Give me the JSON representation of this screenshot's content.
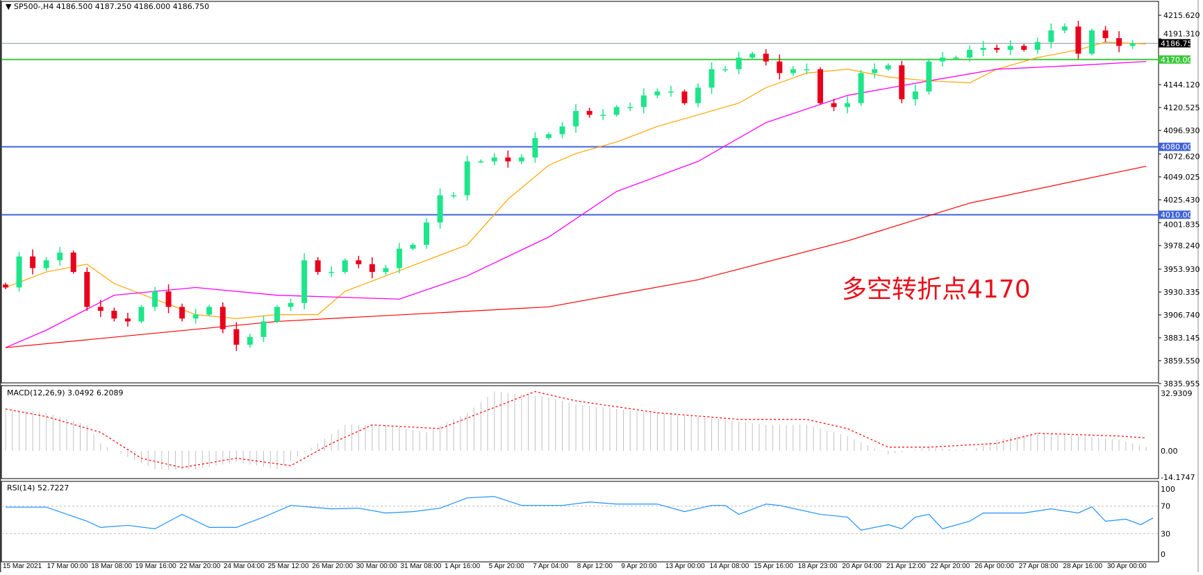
{
  "header": {
    "arrow": "▼",
    "symbol": "SP500-,H4",
    "ohlc": "4186.500 4187.250 4186.000 4186.750"
  },
  "annotation": "多空转折点4170",
  "macd_label": "MACD(12,26,9) 3.0492 6.2089",
  "rsi_label": "RSI(14) 52.7227",
  "colors": {
    "bull": "#1de58a",
    "bear": "#e8001c",
    "ma_fast": "#ffa500",
    "ma_mid": "#ff00ff",
    "ma_slow": "#ff0000",
    "level_green": "#3cc83c",
    "level_blue": "#3f63d8",
    "rsi": "#1e90ff",
    "macd_signal": "#ff0000",
    "macd_hist": "#c0c0c0"
  },
  "chart_data": [
    {
      "type": "candlestick",
      "symbol": "SP500-",
      "timeframe": "H4",
      "closes": [
        3935,
        3967,
        3955,
        3963,
        3971,
        3951,
        3915,
        3911,
        3903,
        3900,
        3915,
        3931,
        3915,
        3903,
        3907,
        3915,
        3892,
        3876,
        3884,
        3900,
        3915,
        3919,
        3963,
        3951,
        3951,
        3963,
        3959,
        3951,
        3955,
        3975,
        3979,
        4002,
        4030,
        4030,
        4065,
        4065,
        4069,
        4065,
        4069,
        4089,
        4093,
        4101,
        4117,
        4113,
        4113,
        4121,
        4121,
        4133,
        4137,
        4137,
        4125,
        4141,
        4160,
        4160,
        4172,
        4176,
        4168,
        4156,
        4160,
        4160,
        4125,
        4121,
        4125,
        4156,
        4160,
        4164,
        4129,
        4137,
        4168,
        4172,
        4172,
        4180,
        4182,
        4180,
        4184,
        4180,
        4188,
        4200,
        4204,
        4176,
        4200,
        4192,
        4184,
        4186.75
      ],
      "current_price": "4186.750",
      "moving_averages": [
        {
          "color": "#ffa500",
          "points": [
            [
              0,
              3935
            ],
            [
              3,
              3951
            ],
            [
              6,
              3959
            ],
            [
              8,
              3939
            ],
            [
              11,
              3923
            ],
            [
              14,
              3907
            ],
            [
              17,
              3903
            ],
            [
              20,
              3907
            ],
            [
              23,
              3907
            ],
            [
              25,
              3931
            ],
            [
              28,
              3947
            ],
            [
              31,
              3963
            ],
            [
              34,
              3979
            ],
            [
              37,
              4026
            ],
            [
              40,
              4061
            ],
            [
              42,
              4073
            ],
            [
              45,
              4085
            ],
            [
              48,
              4101
            ],
            [
              51,
              4113
            ],
            [
              54,
              4125
            ],
            [
              56,
              4141
            ],
            [
              59,
              4156
            ],
            [
              62,
              4160
            ],
            [
              65,
              4152
            ],
            [
              68,
              4148
            ],
            [
              71,
              4146
            ],
            [
              73,
              4160
            ],
            [
              76,
              4172
            ],
            [
              79,
              4180
            ],
            [
              81,
              4188
            ],
            [
              84,
              4186
            ]
          ]
        },
        {
          "color": "#ff00ff",
          "points": [
            [
              0,
              3873
            ],
            [
              3,
              3891
            ],
            [
              8,
              3927
            ],
            [
              14,
              3935
            ],
            [
              20,
              3927
            ],
            [
              29,
              3923
            ],
            [
              34,
              3947
            ],
            [
              40,
              3987
            ],
            [
              45,
              4034
            ],
            [
              51,
              4065
            ],
            [
              56,
              4105
            ],
            [
              62,
              4133
            ],
            [
              68,
              4148
            ],
            [
              73,
              4160
            ],
            [
              79,
              4164
            ],
            [
              84,
              4168
            ]
          ]
        },
        {
          "color": "#ff0000",
          "points": [
            [
              0,
              3873
            ],
            [
              20,
              3900
            ],
            [
              40,
              3915
            ],
            [
              51,
              3943
            ],
            [
              62,
              3983
            ],
            [
              71,
              4022
            ],
            [
              84,
              4060
            ]
          ]
        }
      ],
      "levels": [
        {
          "value": "4170.000",
          "color": "#3cc83c"
        },
        {
          "value": "4080.000",
          "color": "#3f63d8"
        },
        {
          "value": "4010.000",
          "color": "#3f63d8"
        }
      ],
      "y_ticks": [
        "4215.620",
        "4191.310",
        "4144.120",
        "4120.525",
        "4096.930",
        "4072.620",
        "4049.025",
        "4025.430",
        "4001.835",
        "3978.240",
        "3953.930",
        "3930.335",
        "3906.740",
        "3883.145",
        "3859.550",
        "3835.955"
      ],
      "ylim": [
        3835.955,
        4215.62
      ],
      "x_ticks": [
        "15 Mar 2021",
        "17 Mar 00:00",
        "18 Mar 08:00",
        "19 Mar 16:00",
        "22 Mar 20:00",
        "24 Mar 04:00",
        "25 Mar 12:00",
        "26 Mar 20:00",
        "30 Mar 00:00",
        "31 Mar 08:00",
        "1 Apr 16:00",
        "5 Apr 20:00",
        "7 Apr 04:00",
        "8 Apr 12:00",
        "9 Apr 20:00",
        "13 Apr 00:00",
        "14 Apr 08:00",
        "15 Apr 16:00",
        "18 Apr 23:00",
        "20 Apr 04:00",
        "21 Apr 12:00",
        "22 Apr 20:00",
        "26 Apr 00:00",
        "27 Apr 08:00",
        "28 Apr 16:00",
        "30 Apr 00:00"
      ]
    },
    {
      "type": "bar+line",
      "name": "MACD(12,26,9)",
      "y_ticks": [
        "32.9309",
        "0.00",
        "-14.1747"
      ],
      "ylim": [
        -14.1747,
        32.9309
      ],
      "histogram": [
        [
          0,
          22.6
        ],
        [
          3,
          20.6
        ],
        [
          6,
          14
        ],
        [
          7,
          4
        ],
        [
          8,
          0
        ],
        [
          11,
          -10
        ],
        [
          14,
          -10
        ],
        [
          17,
          -6
        ],
        [
          20,
          -10
        ],
        [
          23,
          4
        ],
        [
          25,
          14
        ],
        [
          28,
          14
        ],
        [
          31,
          10
        ],
        [
          34,
          20.6
        ],
        [
          36,
          32
        ],
        [
          40,
          29
        ],
        [
          42,
          25
        ],
        [
          45,
          22.6
        ],
        [
          51,
          18.5
        ],
        [
          56,
          14
        ],
        [
          59,
          14
        ],
        [
          62,
          8
        ],
        [
          65,
          -2
        ],
        [
          68,
          2
        ],
        [
          71,
          0
        ],
        [
          73,
          6
        ],
        [
          76,
          10
        ],
        [
          79,
          8
        ],
        [
          82,
          6
        ],
        [
          84,
          2
        ]
      ],
      "signal": [
        [
          0,
          22.6
        ],
        [
          3,
          18.5
        ],
        [
          7,
          10
        ],
        [
          10,
          -4
        ],
        [
          13,
          -9
        ],
        [
          17,
          -4
        ],
        [
          21,
          -8
        ],
        [
          24,
          4
        ],
        [
          27,
          14
        ],
        [
          32,
          12
        ],
        [
          35,
          20.6
        ],
        [
          39,
          32
        ],
        [
          42,
          27
        ],
        [
          48,
          20.6
        ],
        [
          54,
          17
        ],
        [
          59,
          17
        ],
        [
          62,
          12
        ],
        [
          65,
          2
        ],
        [
          68,
          2
        ],
        [
          73,
          4
        ],
        [
          76,
          9.5
        ],
        [
          82,
          8
        ],
        [
          84,
          7
        ]
      ]
    },
    {
      "type": "line",
      "name": "RSI(14)",
      "y_ticks": [
        "100",
        "70",
        "30",
        "0"
      ],
      "ylim": [
        0,
        100
      ],
      "values": [
        [
          0,
          68.5
        ],
        [
          3,
          68.5
        ],
        [
          6,
          48
        ],
        [
          7,
          39
        ],
        [
          9,
          42
        ],
        [
          11,
          37
        ],
        [
          13,
          58
        ],
        [
          15,
          39
        ],
        [
          17,
          39
        ],
        [
          19,
          54
        ],
        [
          21,
          71
        ],
        [
          24,
          66
        ],
        [
          26,
          67
        ],
        [
          28,
          60
        ],
        [
          30,
          62
        ],
        [
          32,
          67
        ],
        [
          34,
          82
        ],
        [
          36,
          84
        ],
        [
          38,
          71
        ],
        [
          41,
          71
        ],
        [
          43,
          76
        ],
        [
          45,
          73
        ],
        [
          48,
          73
        ],
        [
          50,
          62
        ],
        [
          52,
          71
        ],
        [
          53,
          71
        ],
        [
          54,
          58
        ],
        [
          56,
          73
        ],
        [
          57,
          71
        ],
        [
          60,
          58
        ],
        [
          62,
          54
        ],
        [
          63,
          35
        ],
        [
          65,
          43
        ],
        [
          66,
          37
        ],
        [
          67,
          54
        ],
        [
          68,
          58
        ],
        [
          69,
          37
        ],
        [
          71,
          48
        ],
        [
          72,
          60
        ],
        [
          75,
          60
        ],
        [
          77,
          66
        ],
        [
          79,
          60
        ],
        [
          80,
          69
        ],
        [
          81,
          48
        ],
        [
          82.5,
          51
        ],
        [
          83.6,
          43
        ],
        [
          84.5,
          52.7
        ]
      ]
    }
  ]
}
